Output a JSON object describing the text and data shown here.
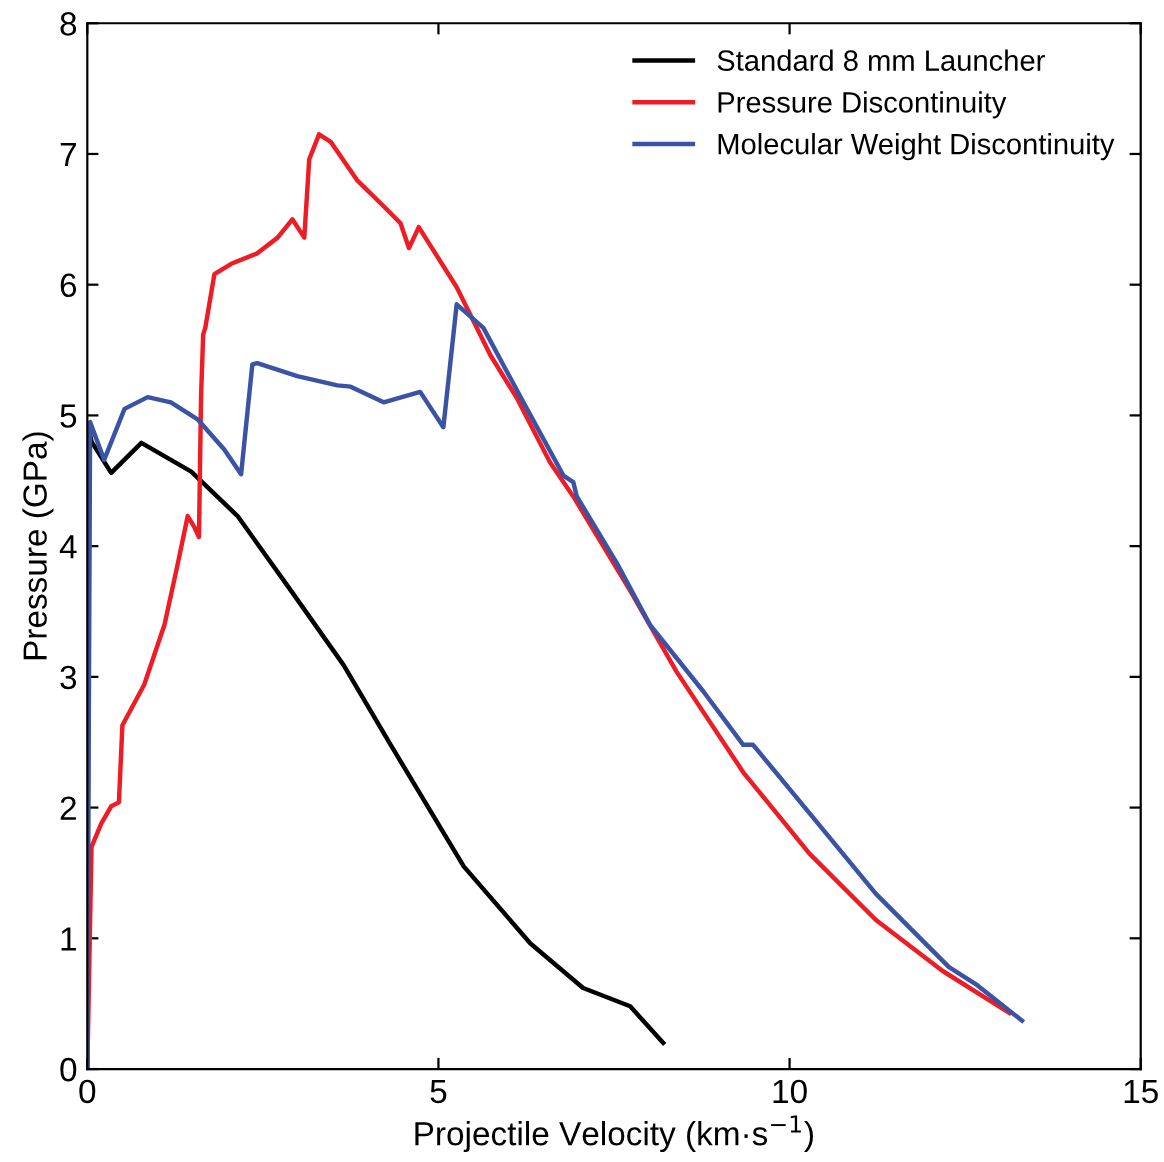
{
  "chart_data": {
    "type": "line",
    "xlabel": "Projectile Velocity (km·s$^{−1}$)",
    "ylabel": "Pressure (GPa)",
    "xlim": [
      0,
      15
    ],
    "ylim": [
      0,
      8
    ],
    "xticks": [
      0,
      5,
      10,
      15
    ],
    "yticks": [
      0,
      1,
      2,
      3,
      4,
      5,
      6,
      7,
      8
    ],
    "grid": false,
    "legend": "top right",
    "marker": "none",
    "line_style": "solid",
    "series": [
      {
        "name": "Standard 8 mm Launcher",
        "color": "#000000",
        "x": [
          0,
          0.02,
          0.06,
          0.34,
          0.77,
          1.48,
          2.14,
          2.9,
          3.65,
          4.32,
          5.36,
          6.31,
          7.06,
          7.73,
          8.2
        ],
        "values": [
          0,
          4.9,
          4.8,
          4.56,
          4.79,
          4.57,
          4.23,
          3.66,
          3.09,
          2.48,
          1.55,
          0.96,
          0.62,
          0.48,
          0.2
        ]
      },
      {
        "name": "Pressure Discontinuity",
        "color": "#ee1c24",
        "x": [
          0,
          0.06,
          0.2,
          0.34,
          0.45,
          0.5,
          0.81,
          1.1,
          1.29,
          1.43,
          1.52,
          1.59,
          1.62,
          1.65,
          1.68,
          1.81,
          2.05,
          2.42,
          2.71,
          2.92,
          3.09,
          3.16,
          3.3,
          3.47,
          3.84,
          4.22,
          4.46,
          4.58,
          4.72,
          5.26,
          5.74,
          6.12,
          6.59,
          6.92,
          7.73,
          8.39,
          9.34,
          10.28,
          11.23,
          12.18,
          13.13
        ],
        "values": [
          0,
          1.7,
          1.88,
          2.01,
          2.04,
          2.63,
          2.94,
          3.4,
          3.87,
          4.23,
          4.15,
          4.07,
          5.15,
          5.62,
          5.67,
          6.08,
          6.16,
          6.24,
          6.36,
          6.5,
          6.36,
          6.96,
          7.15,
          7.09,
          6.8,
          6.6,
          6.47,
          6.28,
          6.44,
          5.98,
          5.46,
          5.13,
          4.64,
          4.38,
          3.66,
          3.04,
          2.27,
          1.65,
          1.14,
          0.75,
          0.43
        ]
      },
      {
        "name": "Molecular Weight Discontinuity",
        "color": "#3a53a4",
        "x": [
          0,
          0.04,
          0.24,
          0.53,
          0.86,
          1.19,
          1.57,
          1.95,
          2.19,
          2.35,
          2.42,
          2.99,
          3.56,
          3.75,
          4.22,
          4.74,
          5.07,
          5.26,
          5.64,
          6.21,
          6.78,
          6.92,
          6.97,
          7.54,
          8.01,
          8.77,
          9.34,
          9.48,
          10.28,
          11.23,
          12.27,
          12.65,
          13.31
        ],
        "values": [
          0,
          4.95,
          4.66,
          5.05,
          5.14,
          5.1,
          4.97,
          4.74,
          4.55,
          5.39,
          5.4,
          5.3,
          5.23,
          5.22,
          5.1,
          5.18,
          4.91,
          5.85,
          5.67,
          5.1,
          4.54,
          4.49,
          4.38,
          3.87,
          3.4,
          2.89,
          2.48,
          2.48,
          1.96,
          1.34,
          0.78,
          0.65,
          0.37
        ]
      }
    ]
  }
}
